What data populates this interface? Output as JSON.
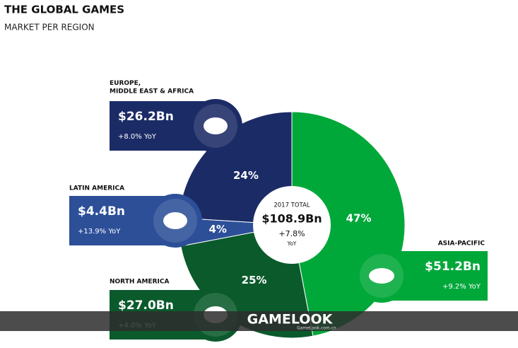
{
  "header": {
    "title": "THE GLOBAL GAMES",
    "subtitle": "MARKET PER REGION"
  },
  "chart_data": {
    "type": "pie",
    "categories": [
      "ASIA-PACIFIC",
      "NORTH AMERICA",
      "LATIN AMERICA",
      "EUROPE,\nMIDDLE EAST & AFRICA"
    ],
    "values": [
      47,
      25,
      4,
      24
    ],
    "value_labels": [
      "47%",
      "25%",
      "4%",
      "24%"
    ],
    "colors": [
      "#00a83a",
      "#0b5a2c",
      "#2c4f98",
      "#1b2b66"
    ],
    "center": {
      "title": "2017 TOTAL",
      "total": "$108.9Bn",
      "growth": "+7.8%",
      "growth_unit": "YoY"
    }
  },
  "regions": [
    {
      "revenue": "$51.2Bn",
      "yoy": "+9.2% YoY"
    },
    {
      "revenue": "$27.0Bn",
      "yoy": "+4.0% YoY"
    },
    {
      "revenue": "$4.4Bn",
      "yoy": "+13.9% YoY"
    },
    {
      "revenue": "$26.2Bn",
      "yoy": "+8.0% YoY"
    }
  ],
  "watermark": {
    "brand": "GAMELOOK",
    "site": "GameLook.com.cn"
  }
}
